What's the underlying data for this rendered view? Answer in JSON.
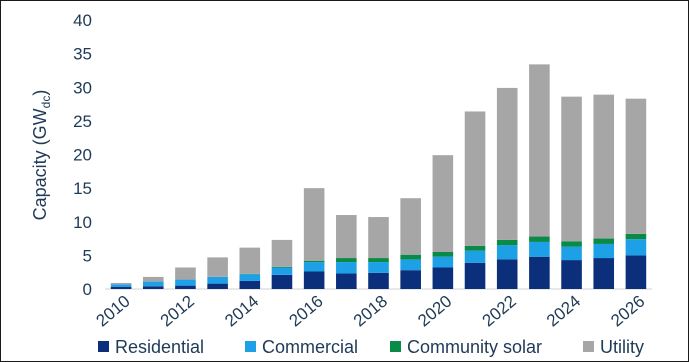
{
  "chart_data": {
    "type": "bar",
    "stacked": true,
    "ylabel_main": "Capacity (GW",
    "ylabel_sub": "dc",
    "ylabel_end": ")",
    "ylim": [
      0,
      40
    ],
    "yticks": [
      0,
      5,
      10,
      15,
      20,
      25,
      30,
      35,
      40
    ],
    "categories": [
      "2010",
      "2011",
      "2012",
      "2013",
      "2014",
      "2015",
      "2016",
      "2017",
      "2018",
      "2019",
      "2020",
      "2021",
      "2022",
      "2023",
      "2024",
      "2025",
      "2026"
    ],
    "xtick_labels": [
      "2010",
      "2012",
      "2014",
      "2016",
      "2018",
      "2020",
      "2022",
      "2024",
      "2026"
    ],
    "series": [
      {
        "name": "Residential",
        "color": "#0b2f7a",
        "values": [
          0.3,
          0.4,
          0.5,
          0.8,
          1.2,
          2.1,
          2.6,
          2.3,
          2.4,
          2.8,
          3.2,
          3.9,
          4.4,
          4.8,
          4.3,
          4.6,
          5.0
        ]
      },
      {
        "name": "Commercial",
        "color": "#1ea0e6",
        "values": [
          0.4,
          0.7,
          0.9,
          1.0,
          1.0,
          1.1,
          1.4,
          1.7,
          1.6,
          1.6,
          1.6,
          1.8,
          2.1,
          2.2,
          2.0,
          2.1,
          2.4
        ]
      },
      {
        "name": "Community solar",
        "color": "#0a8a47",
        "values": [
          0.0,
          0.0,
          0.0,
          0.0,
          0.05,
          0.1,
          0.2,
          0.6,
          0.6,
          0.7,
          0.7,
          0.7,
          0.8,
          0.8,
          0.8,
          0.8,
          0.8
        ]
      },
      {
        "name": "Utility",
        "color": "#a6a6a6",
        "values": [
          0.2,
          0.7,
          1.8,
          2.9,
          3.9,
          4.0,
          10.8,
          6.4,
          6.1,
          8.4,
          14.4,
          20.0,
          22.6,
          25.6,
          21.5,
          21.4,
          20.1
        ]
      }
    ]
  }
}
